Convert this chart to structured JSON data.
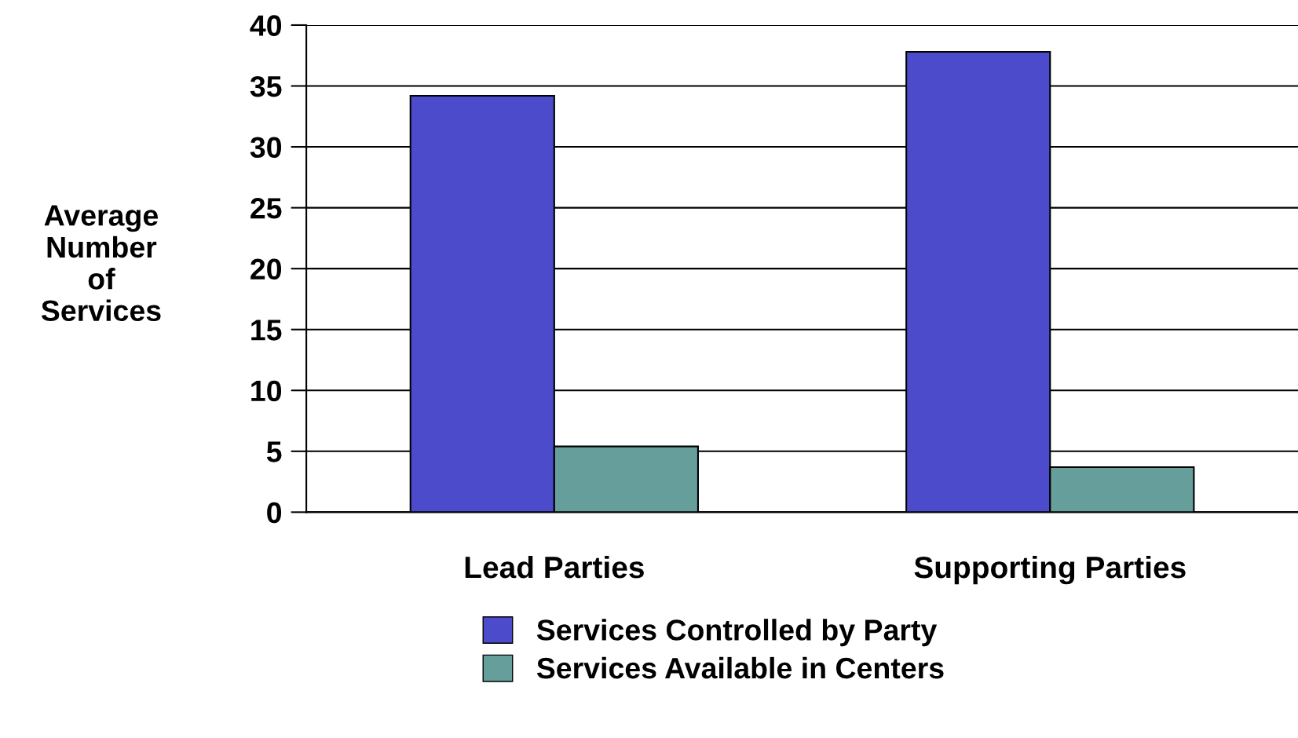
{
  "chart_data": {
    "type": "bar",
    "ylabel": "Average\nNumber\nof\nServices",
    "categories": [
      "Lead Parties",
      "Supporting Parties"
    ],
    "series": [
      {
        "name": "Services Controlled by Party",
        "color": "#4b4bcb",
        "values": [
          34.2,
          37.8
        ]
      },
      {
        "name": "Services Available in Centers",
        "color": "#669e9c",
        "values": [
          5.4,
          3.7
        ]
      }
    ],
    "ylim": [
      0,
      40
    ],
    "yticks": [
      0,
      5,
      10,
      15,
      20,
      25,
      30,
      35,
      40
    ],
    "grid": "y",
    "legend": "bottom"
  }
}
